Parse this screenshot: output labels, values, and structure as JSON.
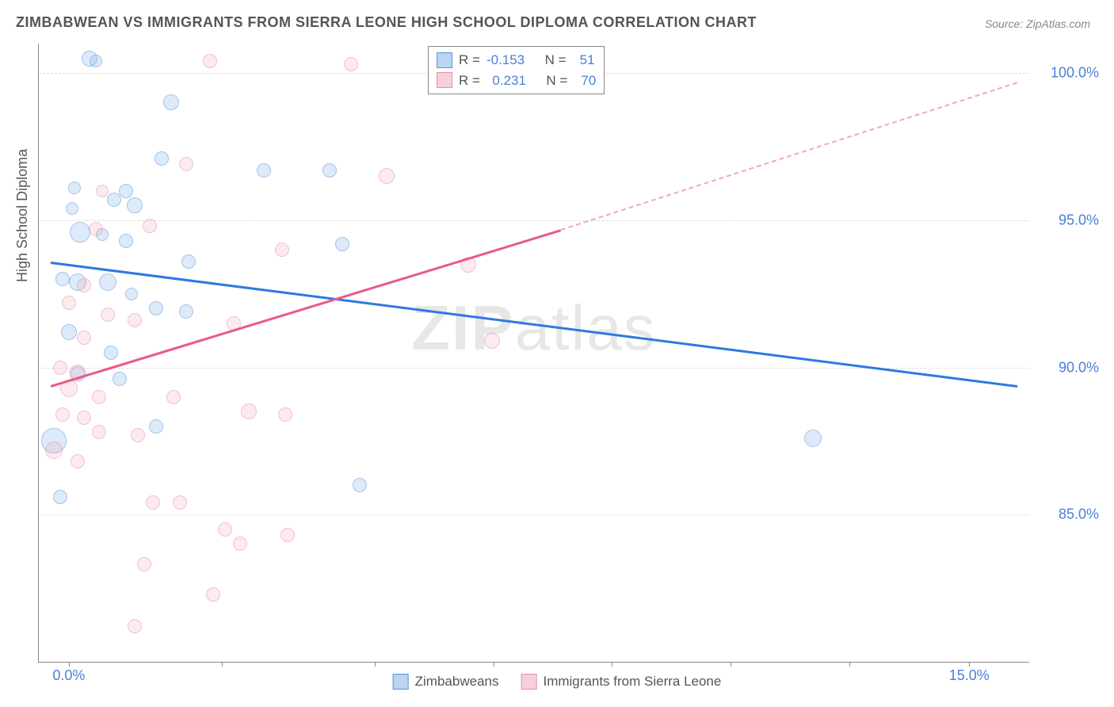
{
  "title": "ZIMBABWEAN VS IMMIGRANTS FROM SIERRA LEONE HIGH SCHOOL DIPLOMA CORRELATION CHART",
  "source": "Source: ZipAtlas.com",
  "ylabel": "High School Diploma",
  "watermark_bold": "ZIP",
  "watermark_rest": "atlas",
  "chart": {
    "type": "scatter",
    "xlim": [
      -0.5,
      16.0
    ],
    "ylim": [
      80.0,
      101.0
    ],
    "xticks": [
      {
        "v": 0.0,
        "l": "0.0%"
      },
      {
        "v": 15.0,
        "l": "15.0%"
      }
    ],
    "xtick_marks": [
      0.0,
      2.55,
      5.1,
      7.075,
      9.05,
      11.025,
      13.0,
      15.0
    ],
    "yticks": [
      {
        "v": 85.0,
        "l": "85.0%"
      },
      {
        "v": 90.0,
        "l": "90.0%"
      },
      {
        "v": 95.0,
        "l": "95.0%"
      },
      {
        "v": 100.0,
        "l": "100.0%"
      }
    ],
    "background_color": "#ffffff",
    "grid_color": "#dddddd",
    "series": [
      {
        "name": "Zimbabweans",
        "color_fill": "#78aae6",
        "color_stroke": "#5a95d8",
        "R": "-0.153",
        "N": "51",
        "trend": {
          "x1": -0.3,
          "y1": 93.6,
          "x2": 15.8,
          "y2": 89.4,
          "color": "#2e78e4"
        },
        "points": [
          {
            "x": 0.35,
            "y": 100.5,
            "r": 9
          },
          {
            "x": 0.45,
            "y": 100.4,
            "r": 7
          },
          {
            "x": 1.7,
            "y": 99.0,
            "r": 9
          },
          {
            "x": 1.55,
            "y": 97.1,
            "r": 8
          },
          {
            "x": 3.25,
            "y": 96.7,
            "r": 8
          },
          {
            "x": 4.35,
            "y": 96.7,
            "r": 8
          },
          {
            "x": 0.1,
            "y": 96.1,
            "r": 7
          },
          {
            "x": 0.95,
            "y": 96.0,
            "r": 8
          },
          {
            "x": 0.75,
            "y": 95.7,
            "r": 8
          },
          {
            "x": 0.05,
            "y": 95.4,
            "r": 7
          },
          {
            "x": 1.1,
            "y": 95.5,
            "r": 9
          },
          {
            "x": 0.18,
            "y": 94.6,
            "r": 12
          },
          {
            "x": 0.55,
            "y": 94.5,
            "r": 7
          },
          {
            "x": 0.95,
            "y": 94.3,
            "r": 8
          },
          {
            "x": 4.55,
            "y": 94.2,
            "r": 8
          },
          {
            "x": 2.0,
            "y": 93.6,
            "r": 8
          },
          {
            "x": -0.1,
            "y": 93.0,
            "r": 8
          },
          {
            "x": 0.15,
            "y": 92.9,
            "r": 10
          },
          {
            "x": 0.65,
            "y": 92.9,
            "r": 10
          },
          {
            "x": 1.05,
            "y": 92.5,
            "r": 7
          },
          {
            "x": 1.45,
            "y": 92.0,
            "r": 8
          },
          {
            "x": 1.95,
            "y": 91.9,
            "r": 8
          },
          {
            "x": 0.0,
            "y": 91.2,
            "r": 9
          },
          {
            "x": 0.7,
            "y": 90.5,
            "r": 8
          },
          {
            "x": 0.15,
            "y": 89.8,
            "r": 8
          },
          {
            "x": 0.85,
            "y": 89.6,
            "r": 8
          },
          {
            "x": 1.45,
            "y": 88.0,
            "r": 8
          },
          {
            "x": -0.25,
            "y": 87.5,
            "r": 15
          },
          {
            "x": 12.4,
            "y": 87.6,
            "r": 10
          },
          {
            "x": 4.85,
            "y": 86.0,
            "r": 8
          },
          {
            "x": -0.15,
            "y": 85.6,
            "r": 8
          }
        ]
      },
      {
        "name": "Immigrants from Sierra Leone",
        "color_fill": "#f0a0b4",
        "color_stroke": "#e590a8",
        "R": "0.231",
        "N": "70",
        "trend_solid": {
          "x1": -0.3,
          "y1": 89.4,
          "x2": 8.2,
          "y2": 94.7,
          "color": "#e85a8a"
        },
        "trend_dashed": {
          "x1": 8.2,
          "y1": 94.7,
          "x2": 15.8,
          "y2": 99.7,
          "color": "#f0a8bc"
        },
        "points": [
          {
            "x": 2.35,
            "y": 100.4,
            "r": 8
          },
          {
            "x": 4.7,
            "y": 100.3,
            "r": 8
          },
          {
            "x": 1.95,
            "y": 96.9,
            "r": 8
          },
          {
            "x": 5.3,
            "y": 96.5,
            "r": 9
          },
          {
            "x": 0.55,
            "y": 96.0,
            "r": 7
          },
          {
            "x": 0.45,
            "y": 94.7,
            "r": 8
          },
          {
            "x": 1.35,
            "y": 94.8,
            "r": 8
          },
          {
            "x": 3.55,
            "y": 94.0,
            "r": 8
          },
          {
            "x": 6.65,
            "y": 93.5,
            "r": 9
          },
          {
            "x": 0.25,
            "y": 92.8,
            "r": 8
          },
          {
            "x": 0.0,
            "y": 92.2,
            "r": 8
          },
          {
            "x": 0.65,
            "y": 91.8,
            "r": 8
          },
          {
            "x": 1.1,
            "y": 91.6,
            "r": 8
          },
          {
            "x": 2.75,
            "y": 91.5,
            "r": 8
          },
          {
            "x": 0.25,
            "y": 91.0,
            "r": 8
          },
          {
            "x": 7.05,
            "y": 90.9,
            "r": 9
          },
          {
            "x": -0.15,
            "y": 90.0,
            "r": 8
          },
          {
            "x": 0.15,
            "y": 89.8,
            "r": 10
          },
          {
            "x": 0.0,
            "y": 89.3,
            "r": 10
          },
          {
            "x": 0.5,
            "y": 89.0,
            "r": 8
          },
          {
            "x": 1.75,
            "y": 89.0,
            "r": 8
          },
          {
            "x": -0.1,
            "y": 88.4,
            "r": 8
          },
          {
            "x": 0.25,
            "y": 88.3,
            "r": 8
          },
          {
            "x": 3.0,
            "y": 88.5,
            "r": 9
          },
          {
            "x": 3.6,
            "y": 88.4,
            "r": 8
          },
          {
            "x": 0.5,
            "y": 87.8,
            "r": 8
          },
          {
            "x": 1.15,
            "y": 87.7,
            "r": 8
          },
          {
            "x": -0.25,
            "y": 87.2,
            "r": 10
          },
          {
            "x": 0.15,
            "y": 86.8,
            "r": 8
          },
          {
            "x": 1.4,
            "y": 85.4,
            "r": 8
          },
          {
            "x": 1.85,
            "y": 85.4,
            "r": 8
          },
          {
            "x": 2.6,
            "y": 84.5,
            "r": 8
          },
          {
            "x": 3.65,
            "y": 84.3,
            "r": 8
          },
          {
            "x": 2.85,
            "y": 84.0,
            "r": 8
          },
          {
            "x": 1.25,
            "y": 83.3,
            "r": 8
          },
          {
            "x": 2.4,
            "y": 82.3,
            "r": 8
          },
          {
            "x": 1.1,
            "y": 81.2,
            "r": 8
          }
        ]
      }
    ]
  },
  "legend_bottom": [
    {
      "swatch": "blue",
      "label": "Zimbabweans"
    },
    {
      "swatch": "pink",
      "label": "Immigrants from Sierra Leone"
    }
  ]
}
